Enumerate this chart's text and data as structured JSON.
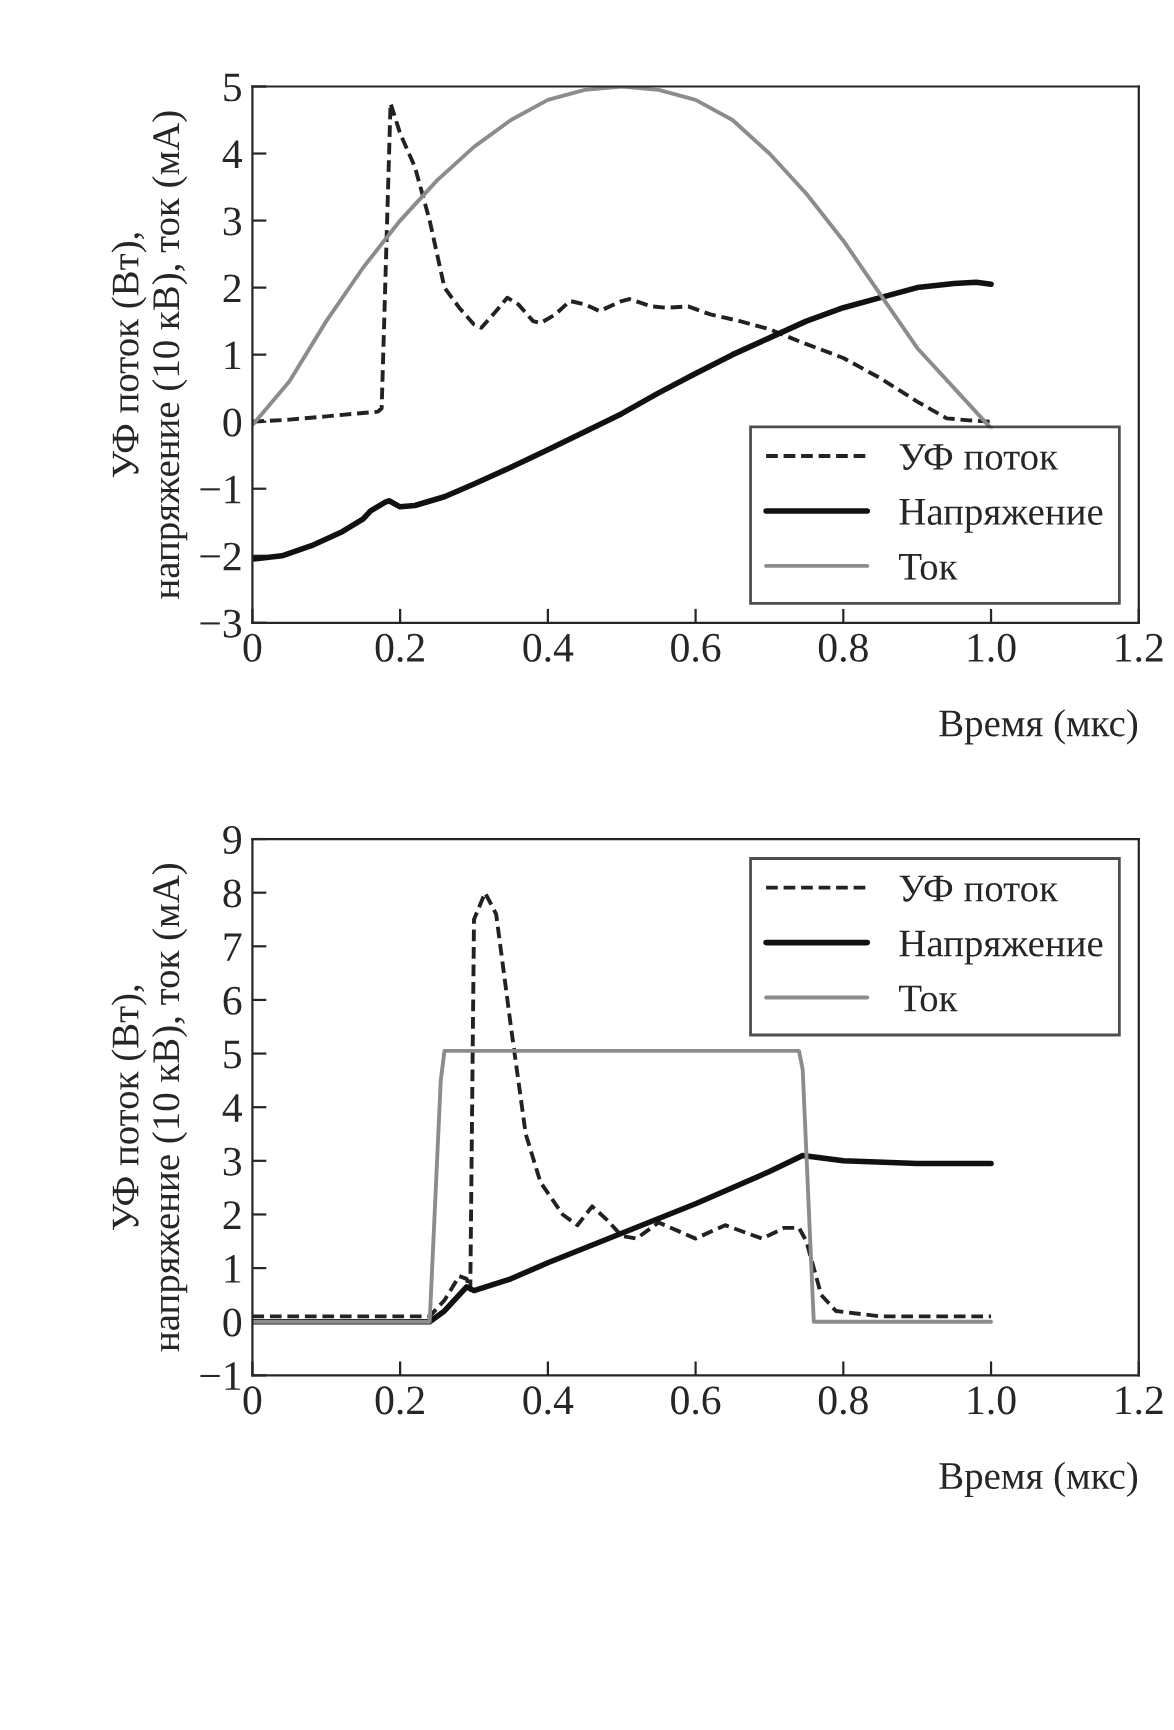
{
  "chart_data": [
    {
      "type": "line",
      "xlabel": "Время (мкс)",
      "ylabel": "УФ поток (Вт),\nнапряжение (10 кВ), ток (мА)",
      "xlim": [
        0,
        1.2
      ],
      "ylim": [
        -3,
        5
      ],
      "xticks": [
        0,
        0.2,
        0.4,
        0.6,
        0.8,
        {
          "value": 1.0,
          "label": "1.0"
        },
        1.2
      ],
      "yticks": [
        {
          "value": -3,
          "label": "−3"
        },
        {
          "value": -2,
          "label": "−2"
        },
        {
          "value": -1,
          "label": "−1"
        },
        0,
        1,
        2,
        3,
        4,
        5
      ],
      "grid": false,
      "legend": "bottom right",
      "marker": "none",
      "series": [
        {
          "name": "УФ поток",
          "color": "#222222",
          "line_style": "dashed",
          "x": [
            0,
            0.05,
            0.1,
            0.17,
            0.175,
            0.187,
            0.2,
            0.22,
            0.24,
            0.26,
            0.28,
            0.3,
            0.31,
            0.33,
            0.345,
            0.36,
            0.38,
            0.39,
            0.41,
            0.43,
            0.45,
            0.47,
            0.5,
            0.51,
            0.54,
            0.56,
            0.59,
            0.62,
            0.66,
            0.7,
            0.74,
            0.8,
            0.85,
            0.9,
            0.94,
            0.97,
            1.0
          ],
          "values": [
            0,
            0.03,
            0.08,
            0.15,
            0.2,
            4.75,
            4.3,
            3.8,
            3.0,
            2.0,
            1.7,
            1.45,
            1.4,
            1.65,
            1.85,
            1.75,
            1.5,
            1.47,
            1.6,
            1.8,
            1.75,
            1.65,
            1.8,
            1.83,
            1.72,
            1.7,
            1.72,
            1.6,
            1.5,
            1.38,
            1.2,
            0.95,
            0.65,
            0.3,
            0.05,
            0.02,
            0
          ]
        },
        {
          "name": "Напряжение",
          "color": "#111111",
          "line_style": "solid",
          "x": [
            0,
            0.04,
            0.08,
            0.12,
            0.15,
            0.16,
            0.18,
            0.185,
            0.2,
            0.22,
            0.26,
            0.3,
            0.35,
            0.4,
            0.45,
            0.5,
            0.55,
            0.6,
            0.65,
            0.7,
            0.75,
            0.8,
            0.85,
            0.9,
            0.95,
            0.98,
            1.0
          ],
          "values": [
            -2.05,
            -2.0,
            -1.85,
            -1.65,
            -1.45,
            -1.33,
            -1.2,
            -1.18,
            -1.27,
            -1.25,
            -1.12,
            -0.93,
            -0.68,
            -0.42,
            -0.15,
            0.12,
            0.43,
            0.72,
            1.0,
            1.25,
            1.5,
            1.7,
            1.85,
            2.0,
            2.06,
            2.08,
            2.05
          ]
        },
        {
          "name": "Ток",
          "color": "#8c8c8c",
          "line_style": "solid",
          "x": [
            0,
            0.05,
            0.1,
            0.15,
            0.2,
            0.25,
            0.3,
            0.35,
            0.4,
            0.45,
            0.5,
            0.55,
            0.6,
            0.65,
            0.7,
            0.75,
            0.8,
            0.85,
            0.9,
            0.95,
            1.0
          ],
          "values": [
            -0.05,
            0.6,
            1.5,
            2.3,
            3.0,
            3.6,
            4.1,
            4.5,
            4.8,
            4.95,
            5.0,
            4.95,
            4.8,
            4.5,
            4.0,
            3.4,
            2.7,
            1.9,
            1.1,
            0.5,
            -0.1
          ]
        }
      ]
    },
    {
      "type": "line",
      "xlabel": "Время (мкс)",
      "ylabel": "УФ поток (Вт),\nнапряжение (10 кВ), ток (мА)",
      "xlim": [
        0,
        1.2
      ],
      "ylim": [
        -1,
        9
      ],
      "xticks": [
        0,
        0.2,
        0.4,
        0.6,
        0.8,
        {
          "value": 1.0,
          "label": "1.0"
        },
        1.2
      ],
      "yticks": [
        {
          "value": -1,
          "label": "−1"
        },
        0,
        1,
        2,
        3,
        4,
        5,
        6,
        7,
        8,
        9
      ],
      "grid": false,
      "legend": "top right",
      "marker": "none",
      "series": [
        {
          "name": "УФ поток",
          "color": "#222222",
          "line_style": "dashed",
          "x": [
            0,
            0.24,
            0.26,
            0.28,
            0.29,
            0.295,
            0.3,
            0.315,
            0.33,
            0.35,
            0.37,
            0.39,
            0.42,
            0.44,
            0.46,
            0.48,
            0.5,
            0.52,
            0.55,
            0.6,
            0.64,
            0.69,
            0.72,
            0.74,
            0.75,
            0.77,
            0.79,
            0.85,
            1.0
          ],
          "values": [
            0.1,
            0.1,
            0.4,
            0.85,
            0.8,
            0.6,
            7.5,
            8.0,
            7.6,
            5.5,
            3.5,
            2.6,
            2.0,
            1.8,
            2.15,
            1.9,
            1.6,
            1.55,
            1.85,
            1.55,
            1.8,
            1.55,
            1.75,
            1.75,
            1.5,
            0.5,
            0.2,
            0.1,
            0.1
          ]
        },
        {
          "name": "Напряжение",
          "color": "#111111",
          "line_style": "solid",
          "x": [
            0,
            0.24,
            0.26,
            0.29,
            0.3,
            0.35,
            0.4,
            0.5,
            0.6,
            0.7,
            0.745,
            0.8,
            0.9,
            1.0
          ],
          "values": [
            0,
            0,
            0.2,
            0.65,
            0.58,
            0.8,
            1.1,
            1.65,
            2.2,
            2.8,
            3.1,
            3.0,
            2.95,
            2.95
          ]
        },
        {
          "name": "Ток",
          "color": "#8c8c8c",
          "line_style": "solid",
          "x": [
            0,
            0.24,
            0.255,
            0.26,
            0.74,
            0.745,
            0.76,
            1.0
          ],
          "values": [
            0,
            0,
            4.5,
            5.05,
            5.05,
            4.7,
            0,
            0
          ]
        }
      ]
    }
  ]
}
